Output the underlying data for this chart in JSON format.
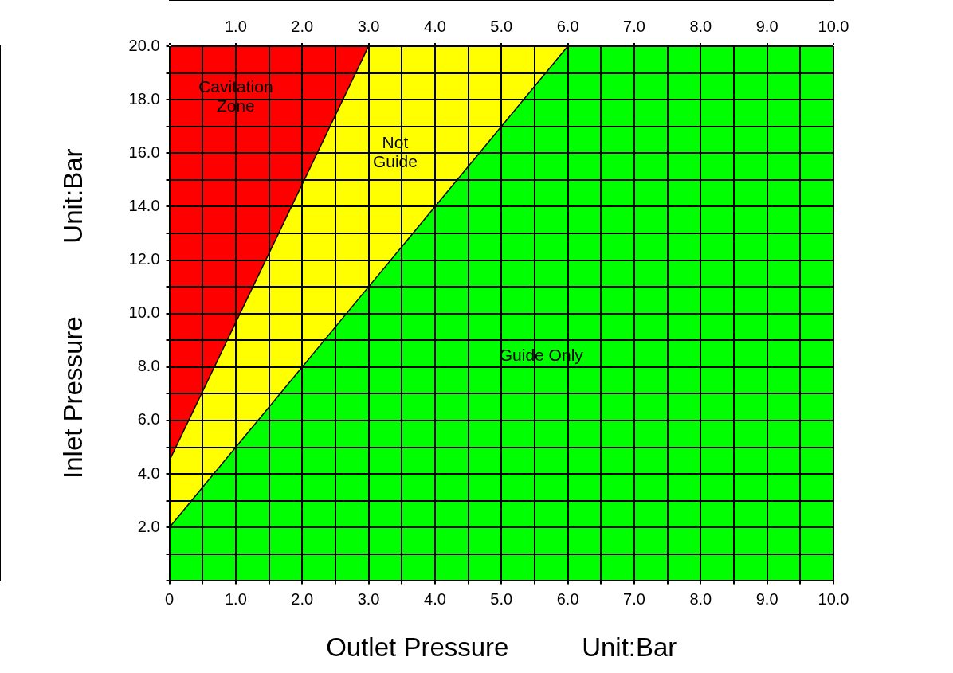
{
  "chart_data": {
    "type": "area",
    "stacked": true,
    "xlabel": "Outlet Pressure          Unit:Bar",
    "ylabel": "Inlet Pressure          Unit:Bar",
    "x": [
      0,
      3,
      6,
      10
    ],
    "series": [
      {
        "color": "#00ff00",
        "values": [
          2,
          11,
          20,
          20
        ]
      },
      {
        "color": "#ffff00",
        "values": [
          2.5,
          9,
          0,
          0
        ]
      },
      {
        "color": "#ff0000",
        "values": [
          15.5,
          0,
          0,
          0
        ]
      }
    ],
    "xlim": [
      0,
      10
    ],
    "ylim": [
      0,
      20
    ],
    "x2lim": [
      0,
      10
    ],
    "xticks": [
      {
        "value": 0,
        "label": "0"
      },
      {
        "value": 0.5,
        "label": null
      },
      {
        "value": 1,
        "label": "1.0"
      },
      {
        "value": 1.5,
        "label": null
      },
      {
        "value": 2,
        "label": "2.0"
      },
      {
        "value": 2.5,
        "label": null
      },
      {
        "value": 3,
        "label": "3.0"
      },
      {
        "value": 3.5,
        "label": null
      },
      {
        "value": 4,
        "label": "4.0"
      },
      {
        "value": 4.5,
        "label": null
      },
      {
        "value": 5,
        "label": "5.0"
      },
      {
        "value": 5.5,
        "label": null
      },
      {
        "value": 6,
        "label": "6.0"
      },
      {
        "value": 6.5,
        "label": null
      },
      {
        "value": 7,
        "label": "7.0"
      },
      {
        "value": 7.5,
        "label": null
      },
      {
        "value": 8,
        "label": "8.0"
      },
      {
        "value": 8.5,
        "label": null
      },
      {
        "value": 9,
        "label": "9.0"
      },
      {
        "value": 9.5,
        "label": null
      },
      {
        "value": 10,
        "label": "10.0"
      }
    ],
    "x2ticks": [
      {
        "value": 0,
        "label": null
      },
      {
        "value": 1,
        "label": "1.0"
      },
      {
        "value": 2,
        "label": "2.0"
      },
      {
        "value": 3,
        "label": "3.0"
      },
      {
        "value": 4,
        "label": "4.0"
      },
      {
        "value": 5,
        "label": "5.0"
      },
      {
        "value": 6,
        "label": "6.0"
      },
      {
        "value": 7,
        "label": "7.0"
      },
      {
        "value": 8,
        "label": "8.0"
      },
      {
        "value": 9,
        "label": "9.0"
      },
      {
        "value": 10,
        "label": "10.0"
      }
    ],
    "yticks": [
      {
        "value": 0,
        "label": null
      },
      {
        "value": 1,
        "label": null
      },
      {
        "value": 2,
        "label": "2.0"
      },
      {
        "value": 3,
        "label": null
      },
      {
        "value": 4,
        "label": "4.0"
      },
      {
        "value": 5,
        "label": null
      },
      {
        "value": 6,
        "label": "6.0"
      },
      {
        "value": 7,
        "label": null
      },
      {
        "value": 8,
        "label": "8.0"
      },
      {
        "value": 9,
        "label": null
      },
      {
        "value": 10,
        "label": "10.0"
      },
      {
        "value": 11,
        "label": null
      },
      {
        "value": 12,
        "label": "12.0"
      },
      {
        "value": 13,
        "label": null
      },
      {
        "value": 14,
        "label": "14.0"
      },
      {
        "value": 15,
        "label": null
      },
      {
        "value": 16,
        "label": "16.0"
      },
      {
        "value": 17,
        "label": null
      },
      {
        "value": 18,
        "label": "18.0"
      },
      {
        "value": 19,
        "label": null
      },
      {
        "value": 20,
        "label": "20.0"
      }
    ],
    "grid": true,
    "legend": false,
    "marker": "none",
    "line_style": "solid",
    "annotations": [
      "Cavitation\nZone",
      "Not\nGuide",
      "Guide Only"
    ]
  }
}
